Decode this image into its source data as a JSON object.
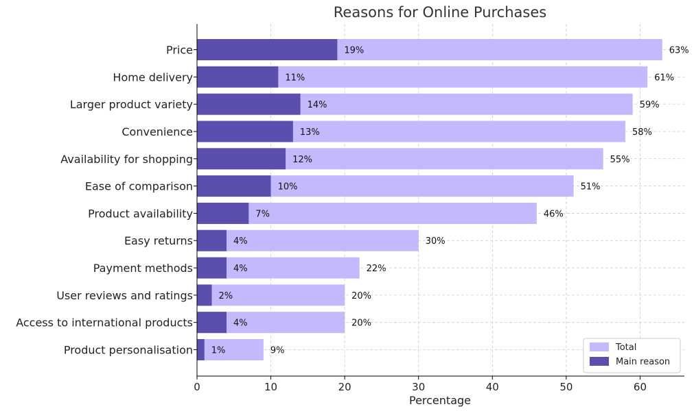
{
  "chart_data": {
    "type": "bar",
    "orientation": "horizontal",
    "stacking": "overlay",
    "title": "Reasons for Online Purchases",
    "xlabel": "Percentage",
    "ylabel": "",
    "xlim": [
      0,
      66
    ],
    "xticks": [
      "0",
      "10",
      "20",
      "30",
      "40",
      "50",
      "60"
    ],
    "grid": true,
    "legend_position": "bottom-right",
    "categories": [
      "Price",
      "Home delivery",
      "Larger product variety",
      "Convenience",
      "Availability for shopping",
      "Ease of comparison",
      "Product availability",
      "Easy returns",
      "Payment methods",
      "User reviews and ratings",
      "Access to international products",
      "Product personalisation"
    ],
    "series": [
      {
        "name": "Total",
        "color": "#c3b9fc",
        "values": [
          63,
          61,
          59,
          58,
          55,
          51,
          46,
          30,
          22,
          20,
          20,
          9
        ],
        "labels": [
          "63%",
          "61%",
          "59%",
          "58%",
          "55%",
          "51%",
          "46%",
          "30%",
          "22%",
          "20%",
          "20%",
          "9%"
        ]
      },
      {
        "name": "Main reason",
        "color": "#5b4fae",
        "values": [
          19,
          11,
          14,
          13,
          12,
          10,
          7,
          4,
          4,
          2,
          4,
          1
        ],
        "labels": [
          "19%",
          "11%",
          "14%",
          "13%",
          "12%",
          "10%",
          "7%",
          "4%",
          "4%",
          "2%",
          "4%",
          "1%"
        ]
      }
    ]
  }
}
